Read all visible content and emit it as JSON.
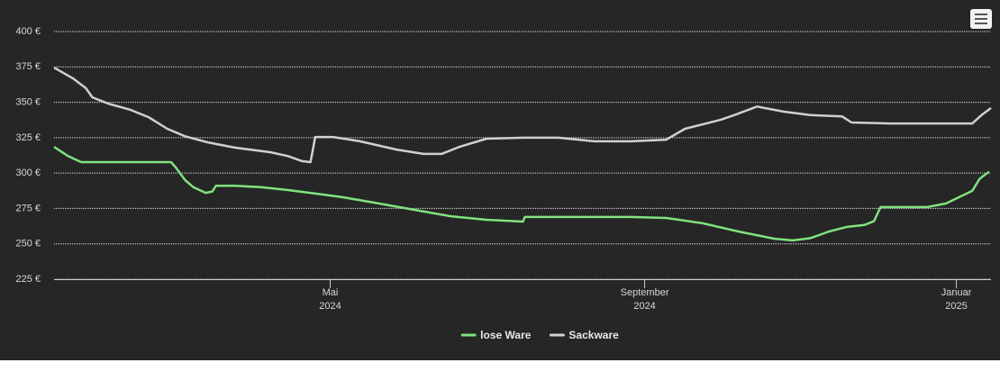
{
  "chart_data": {
    "type": "line",
    "xlim": [
      2024.036,
      2025.037
    ],
    "xticks": [
      {
        "value": 2024.331,
        "label": "Mai 2024"
      },
      {
        "value": 2024.667,
        "label": "September 2024"
      },
      {
        "value": 2025.0,
        "label": "Januar 2025"
      }
    ],
    "ylim": [
      225,
      400
    ],
    "yticks": [
      {
        "value": 225,
        "label": "225 €"
      },
      {
        "value": 250,
        "label": "250 €"
      },
      {
        "value": 275,
        "label": "275 €"
      },
      {
        "value": 300,
        "label": "300 €"
      },
      {
        "value": 325,
        "label": "325 €"
      },
      {
        "value": 350,
        "label": "350 €"
      },
      {
        "value": 375,
        "label": "375 €"
      },
      {
        "value": 400,
        "label": "400 €"
      }
    ],
    "grid": true,
    "legend": "bottom",
    "series": [
      {
        "name": "lose Ware",
        "color": "#80e27e",
        "x": [
          2024.036,
          2024.051,
          2024.065,
          2024.094,
          2024.161,
          2024.166,
          2024.176,
          2024.185,
          2024.198,
          2024.205,
          2024.209,
          2024.229,
          2024.258,
          2024.286,
          2024.315,
          2024.344,
          2024.383,
          2024.421,
          2024.46,
          2024.498,
          2024.537,
          2024.539,
          2024.604,
          2024.652,
          2024.69,
          2024.729,
          2024.767,
          2024.806,
          2024.825,
          2024.844,
          2024.864,
          2024.883,
          2024.902,
          2024.912,
          2024.919,
          2024.969,
          2024.989,
          2025.017,
          2025.025,
          2025.035
        ],
        "values": [
          318.5,
          312,
          307.7,
          307.7,
          307.7,
          304,
          295,
          290,
          286,
          287,
          291,
          291,
          290,
          288,
          285.5,
          283,
          278.5,
          274,
          269.5,
          267,
          265.7,
          269,
          269,
          269,
          268.3,
          264.5,
          258.7,
          253.6,
          252.4,
          254,
          258.7,
          262,
          263.4,
          266,
          276,
          276,
          278.5,
          287.4,
          296,
          301
        ]
      },
      {
        "name": "Sackware",
        "color": "#d0d0d0",
        "x": [
          2024.036,
          2024.056,
          2024.07,
          2024.077,
          2024.094,
          2024.118,
          2024.137,
          2024.157,
          2024.176,
          2024.2,
          2024.229,
          2024.267,
          2024.286,
          2024.301,
          2024.31,
          2024.315,
          2024.334,
          2024.363,
          2024.402,
          2024.431,
          2024.45,
          2024.469,
          2024.498,
          2024.537,
          2024.575,
          2024.613,
          2024.652,
          2024.69,
          2024.71,
          2024.748,
          2024.763,
          2024.787,
          2024.815,
          2024.844,
          2024.878,
          2024.888,
          2024.931,
          2025.017,
          2025.027,
          2025.037
        ],
        "values": [
          374.5,
          367,
          360,
          353.5,
          349,
          344.6,
          339.5,
          331.3,
          326,
          321.7,
          318,
          314.7,
          312,
          308.4,
          307.7,
          325.5,
          325.5,
          322.4,
          316.6,
          313.5,
          313.5,
          318.5,
          324.3,
          325,
          325,
          322.4,
          322.4,
          323.6,
          331.3,
          337.6,
          341,
          347,
          343.4,
          341,
          340,
          335.7,
          335,
          335,
          341,
          346
        ]
      }
    ]
  }
}
